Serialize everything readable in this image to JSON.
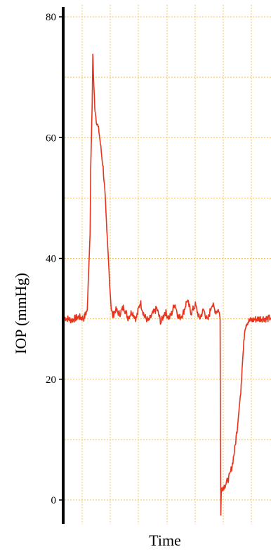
{
  "chart_data": {
    "type": "line",
    "title": "",
    "xlabel": "Time",
    "ylabel": "IOP (mmHg)",
    "ylim": [
      -4,
      82
    ],
    "xlim": [
      0,
      300
    ],
    "yticks": [
      0,
      20,
      40,
      60,
      80
    ],
    "grid": true,
    "legend": "none",
    "colors": {
      "line": "#e8341c",
      "grid": "#f2c46a",
      "axis": "#000000"
    },
    "series": [
      {
        "x": [
          0,
          10,
          20,
          28,
          33,
          35,
          37,
          38,
          40,
          41,
          42,
          44,
          46,
          48,
          50,
          52,
          54,
          56,
          58,
          60,
          62,
          64,
          66,
          68,
          70,
          74,
          80,
          86,
          92,
          98,
          104,
          110,
          116,
          122,
          128,
          134,
          140,
          146,
          152,
          156,
          160,
          166,
          172,
          178,
          184,
          190,
          196,
          202,
          208,
          214,
          220,
          224,
          226,
          226.5,
          227,
          228,
          232,
          236,
          240,
          244,
          248,
          252,
          256,
          258,
          260,
          261,
          262,
          264,
          266,
          270,
          276,
          282,
          290,
          295,
          300
        ],
        "y": [
          30.2,
          29.8,
          30.3,
          30.1,
          31.5,
          38,
          44,
          55,
          65,
          73.5,
          70,
          65,
          63,
          62,
          61,
          59,
          57,
          55,
          52,
          48,
          43,
          39,
          35,
          31.5,
          30.5,
          31.5,
          30.8,
          32,
          30.2,
          31.2,
          30,
          32.8,
          30.4,
          29.6,
          30.8,
          31.7,
          29.4,
          31.2,
          30.1,
          31,
          32.6,
          30.1,
          30.8,
          33.1,
          31,
          32.3,
          30,
          31.5,
          29.6,
          32.5,
          31.2,
          31.5,
          30,
          10,
          -2.5,
          2,
          2.3,
          3,
          4,
          6,
          9,
          13,
          18,
          22,
          25,
          27,
          28.5,
          29.2,
          29.5,
          29.7,
          29.9,
          30,
          30.1,
          30,
          30.2
        ]
      }
    ]
  }
}
